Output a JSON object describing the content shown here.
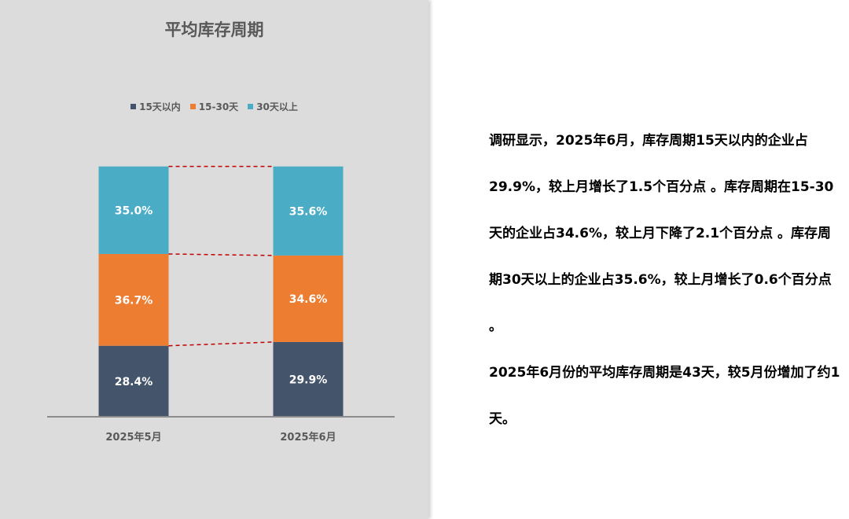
{
  "chart_data": {
    "type": "bar",
    "stacked": true,
    "title": "平均库存周期",
    "categories": [
      "2025年5月",
      "2025年6月"
    ],
    "series": [
      {
        "name": "15天以内",
        "color": "#44546a",
        "values": [
          28.4,
          29.9
        ],
        "labels": [
          "28.4%",
          "29.9%"
        ]
      },
      {
        "name": "15-30天",
        "color": "#ed7d31",
        "values": [
          36.7,
          34.6
        ],
        "labels": [
          "36.7%",
          "34.6%"
        ]
      },
      {
        "name": "30天以上",
        "color": "#4bacc6",
        "values": [
          35.0,
          35.6
        ],
        "labels": [
          "35.0%",
          "35.6%"
        ]
      }
    ],
    "ylim": [
      0,
      100
    ],
    "legend_position": "top",
    "series_lines": true,
    "series_line_color": "#c00000"
  },
  "text": {
    "paragraph1": "调研显示，2025年6月，库存周期15天以内的企业占29.9%，较上月增长了1.5个百分点 。库存周期在15-30天的企业占34.6%，较上月下降了2.1个百分点 。库存周期30天以上的企业占35.6%，较上月增长了0.6个百分点 。",
    "paragraph2": "2025年6月份的平均库存周期是43天，较5月份增加了约1天。"
  }
}
